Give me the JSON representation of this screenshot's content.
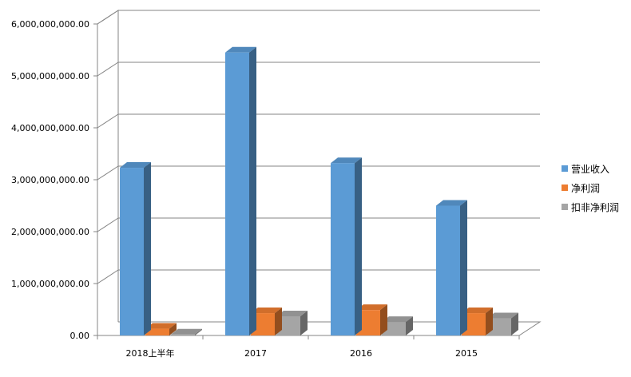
{
  "chart_data": {
    "type": "bar",
    "categories": [
      "2018上半年",
      "2017",
      "2016",
      "2015"
    ],
    "series": [
      {
        "name": "营业收入",
        "color": "#5b9bd5",
        "values": [
          3230000000,
          5450000000,
          3320000000,
          2500000000
        ]
      },
      {
        "name": "净利润",
        "color": "#ed7d31",
        "values": [
          130000000,
          430000000,
          490000000,
          430000000
        ]
      },
      {
        "name": "扣非净利润",
        "color": "#a5a5a5",
        "values": [
          20000000,
          370000000,
          260000000,
          330000000
        ]
      }
    ],
    "yticks": [
      "0.00",
      "1,000,000,000.00",
      "2,000,000,000.00",
      "3,000,000,000.00",
      "4,000,000,000.00",
      "5,000,000,000.00",
      "6,000,000,000.00"
    ],
    "ylim": [
      0,
      6000000000
    ],
    "grid": true,
    "legend_position": "right",
    "style": "3d-clustered-column"
  }
}
